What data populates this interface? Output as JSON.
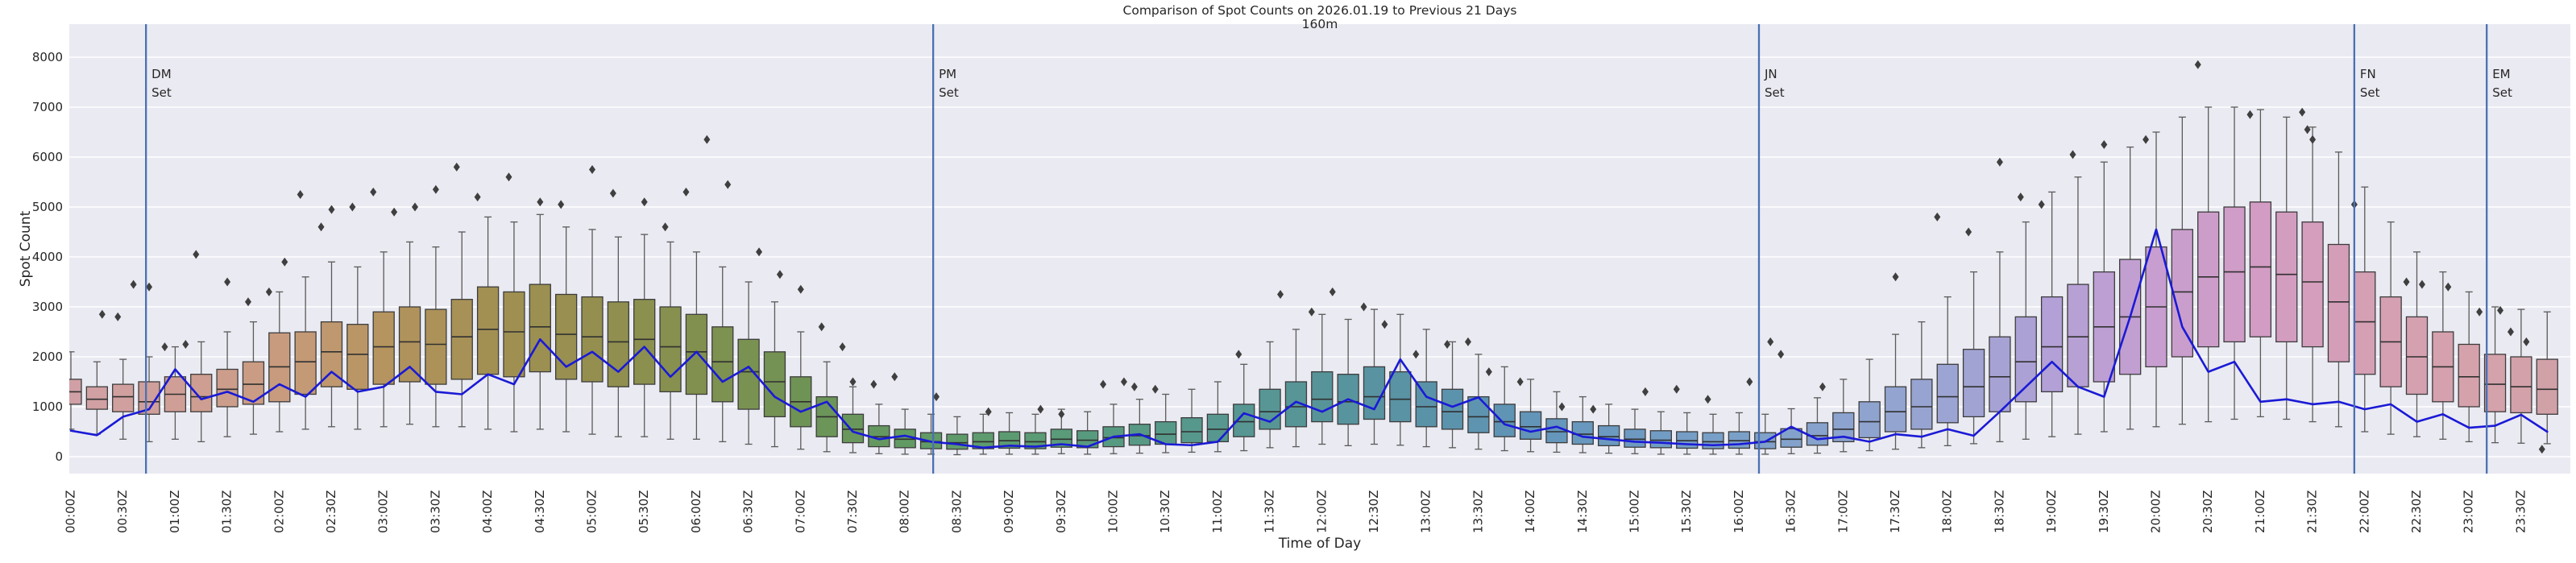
{
  "figure": {
    "title": "Comparison of Spot Counts on 2026.01.19 to Previous 21 Days",
    "subtitle": "160m",
    "xlabel": "Time of Day",
    "ylabel": "Spot Count"
  },
  "chart_data": {
    "type": "boxplot+line",
    "description": "Boxplots of spot counts from previous 21 days per time bin, with current-day spot counts as blue line and moon/sun event vertical lines",
    "interval_minutes": 15,
    "x_tick_labels": [
      "00:00Z",
      "00:30Z",
      "01:00Z",
      "01:30Z",
      "02:00Z",
      "02:30Z",
      "03:00Z",
      "03:30Z",
      "04:00Z",
      "04:30Z",
      "05:00Z",
      "05:30Z",
      "06:00Z",
      "06:30Z",
      "07:00Z",
      "07:30Z",
      "08:00Z",
      "08:30Z",
      "09:00Z",
      "09:30Z",
      "10:00Z",
      "10:30Z",
      "11:00Z",
      "11:30Z",
      "12:00Z",
      "12:30Z",
      "13:00Z",
      "13:30Z",
      "14:00Z",
      "14:30Z",
      "15:00Z",
      "15:30Z",
      "16:00Z",
      "16:30Z",
      "17:00Z",
      "17:30Z",
      "18:00Z",
      "18:30Z",
      "19:00Z",
      "19:30Z",
      "20:00Z",
      "20:30Z",
      "21:00Z",
      "21:30Z",
      "22:00Z",
      "22:30Z",
      "23:00Z",
      "23:30Z"
    ],
    "y_ticks": [
      0,
      1000,
      2000,
      3000,
      4000,
      5000,
      6000,
      7000,
      8000
    ],
    "y_tick_labels": [
      "0",
      "1000",
      "2000",
      "3000",
      "4000",
      "5000",
      "6000",
      "7000",
      "8000"
    ],
    "ylim": [
      -350,
      8650
    ],
    "grid": "horizontal-white-on-lavender",
    "legend": "none",
    "series": {
      "box_median": [
        1300,
        1150,
        1200,
        1100,
        1250,
        1200,
        1350,
        1450,
        1800,
        1900,
        2100,
        2050,
        2200,
        2300,
        2250,
        2400,
        2550,
        2500,
        2600,
        2450,
        2400,
        2300,
        2350,
        2200,
        2100,
        1900,
        1700,
        1500,
        1100,
        800,
        550,
        400,
        350,
        300,
        280,
        300,
        320,
        300,
        350,
        330,
        380,
        420,
        450,
        500,
        550,
        700,
        900,
        1000,
        1150,
        1100,
        1200,
        1150,
        1000,
        900,
        800,
        700,
        600,
        500,
        450,
        400,
        350,
        330,
        320,
        300,
        320,
        300,
        350,
        420,
        550,
        700,
        900,
        1000,
        1200,
        1400,
        1600,
        1900,
        2200,
        2400,
        2600,
        2800,
        3000,
        3300,
        3600,
        3700,
        3800,
        3650,
        3500,
        3100,
        2700,
        2300,
        2000,
        1800,
        1600,
        1450,
        1400,
        1350
      ],
      "box_q1": [
        1050,
        950,
        900,
        850,
        900,
        900,
        1000,
        1050,
        1100,
        1250,
        1400,
        1350,
        1450,
        1500,
        1450,
        1550,
        1650,
        1600,
        1700,
        1550,
        1500,
        1400,
        1450,
        1300,
        1250,
        1100,
        950,
        800,
        600,
        400,
        280,
        200,
        180,
        160,
        150,
        160,
        170,
        160,
        190,
        180,
        200,
        230,
        250,
        280,
        300,
        400,
        550,
        600,
        700,
        650,
        750,
        700,
        600,
        550,
        480,
        400,
        350,
        280,
        250,
        220,
        190,
        180,
        170,
        160,
        170,
        160,
        190,
        230,
        300,
        380,
        500,
        550,
        680,
        800,
        900,
        1100,
        1300,
        1400,
        1500,
        1650,
        1800,
        2000,
        2200,
        2300,
        2400,
        2300,
        2200,
        1900,
        1650,
        1400,
        1250,
        1100,
        1000,
        900,
        880,
        850
      ],
      "box_q3": [
        1550,
        1400,
        1450,
        1500,
        1600,
        1650,
        1750,
        1900,
        2480,
        2500,
        2700,
        2650,
        2900,
        3000,
        2950,
        3150,
        3400,
        3300,
        3450,
        3250,
        3200,
        3100,
        3150,
        3000,
        2850,
        2600,
        2350,
        2100,
        1600,
        1200,
        850,
        620,
        550,
        480,
        450,
        480,
        500,
        480,
        550,
        520,
        600,
        650,
        700,
        780,
        850,
        1050,
        1350,
        1500,
        1700,
        1650,
        1800,
        1700,
        1500,
        1350,
        1200,
        1050,
        900,
        760,
        700,
        620,
        550,
        520,
        500,
        480,
        500,
        480,
        560,
        680,
        880,
        1100,
        1400,
        1550,
        1850,
        2150,
        2400,
        2800,
        3200,
        3450,
        3700,
        3950,
        4200,
        4550,
        4900,
        5000,
        5100,
        4900,
        4700,
        4250,
        3700,
        3200,
        2800,
        2500,
        2250,
        2050,
        2000,
        1950
      ],
      "whisker_low": [
        550,
        450,
        350,
        300,
        350,
        300,
        400,
        450,
        500,
        550,
        600,
        550,
        600,
        650,
        600,
        600,
        550,
        500,
        550,
        500,
        450,
        400,
        400,
        350,
        350,
        300,
        250,
        200,
        150,
        100,
        80,
        60,
        50,
        50,
        40,
        50,
        50,
        50,
        60,
        50,
        60,
        70,
        80,
        90,
        100,
        120,
        180,
        200,
        250,
        220,
        250,
        230,
        200,
        180,
        150,
        120,
        100,
        90,
        80,
        70,
        60,
        50,
        50,
        50,
        50,
        50,
        60,
        70,
        100,
        120,
        150,
        180,
        220,
        260,
        300,
        350,
        400,
        450,
        500,
        550,
        600,
        650,
        700,
        750,
        800,
        750,
        700,
        600,
        500,
        450,
        400,
        350,
        300,
        280,
        270,
        260
      ],
      "whisker_high": [
        2100,
        1900,
        1950,
        2000,
        2200,
        2300,
        2500,
        2700,
        3300,
        3600,
        3900,
        3800,
        4100,
        4300,
        4200,
        4500,
        4800,
        4700,
        4850,
        4600,
        4550,
        4400,
        4450,
        4300,
        4100,
        3800,
        3500,
        3100,
        2500,
        1900,
        1400,
        1050,
        950,
        850,
        800,
        850,
        880,
        850,
        950,
        900,
        1050,
        1150,
        1250,
        1350,
        1500,
        1850,
        2300,
        2550,
        2850,
        2750,
        2950,
        2850,
        2550,
        2300,
        2050,
        1800,
        1550,
        1300,
        1200,
        1050,
        950,
        900,
        880,
        850,
        880,
        850,
        960,
        1180,
        1550,
        1950,
        2450,
        2700,
        3200,
        3700,
        4100,
        4700,
        5300,
        5600,
        5900,
        6200,
        6500,
        6800,
        7000,
        7000,
        6950,
        6800,
        6600,
        6100,
        5400,
        4700,
        4100,
        3700,
        3300,
        3000,
        2950,
        2900
      ],
      "current_day_line": [
        520,
        430,
        800,
        950,
        1750,
        1150,
        1300,
        1100,
        1450,
        1200,
        1700,
        1300,
        1400,
        1800,
        1300,
        1250,
        1650,
        1450,
        2350,
        1800,
        2100,
        1700,
        2200,
        1600,
        2100,
        1500,
        1800,
        1200,
        900,
        1100,
        500,
        350,
        420,
        300,
        250,
        180,
        220,
        200,
        250,
        200,
        400,
        450,
        250,
        230,
        300,
        870,
        700,
        1100,
        900,
        1150,
        950,
        1950,
        1200,
        1000,
        1190,
        650,
        500,
        600,
        400,
        350,
        300,
        280,
        250,
        230,
        250,
        300,
        600,
        350,
        400,
        300,
        450,
        400,
        550,
        420,
        900,
        1400,
        1900,
        1400,
        1200,
        2800,
        4550,
        2600,
        1700,
        1900,
        1100,
        1150,
        1050,
        1100,
        950,
        1050,
        700,
        850,
        580,
        620,
        840,
        500
      ]
    },
    "outliers": [
      [
        0.3,
        2850
      ],
      [
        0.45,
        2800
      ],
      [
        0.6,
        3450
      ],
      [
        0.75,
        3400
      ],
      [
        0.9,
        2200
      ],
      [
        1.1,
        2250
      ],
      [
        1.2,
        4050
      ],
      [
        1.5,
        3500
      ],
      [
        1.7,
        3100
      ],
      [
        1.9,
        3300
      ],
      [
        2.05,
        3900
      ],
      [
        2.2,
        5250
      ],
      [
        2.4,
        4600
      ],
      [
        2.5,
        4950
      ],
      [
        2.7,
        5000
      ],
      [
        2.9,
        5300
      ],
      [
        3.1,
        4900
      ],
      [
        3.3,
        5000
      ],
      [
        3.5,
        5350
      ],
      [
        3.7,
        5800
      ],
      [
        3.9,
        5200
      ],
      [
        4.2,
        5600
      ],
      [
        4.5,
        5100
      ],
      [
        4.7,
        5050
      ],
      [
        5.0,
        5750
      ],
      [
        5.2,
        5275
      ],
      [
        5.5,
        5100
      ],
      [
        5.7,
        4600
      ],
      [
        5.9,
        5300
      ],
      [
        6.1,
        6350
      ],
      [
        6.3,
        5450
      ],
      [
        6.6,
        4100
      ],
      [
        6.8,
        3650
      ],
      [
        7.0,
        3350
      ],
      [
        7.2,
        2600
      ],
      [
        7.4,
        2200
      ],
      [
        7.5,
        1500
      ],
      [
        7.7,
        1450
      ],
      [
        7.9,
        1600
      ],
      [
        8.3,
        1200
      ],
      [
        8.8,
        900
      ],
      [
        9.3,
        950
      ],
      [
        9.5,
        850
      ],
      [
        9.9,
        1450
      ],
      [
        10.1,
        1500
      ],
      [
        10.2,
        1400
      ],
      [
        10.4,
        1350
      ],
      [
        11.2,
        2050
      ],
      [
        11.6,
        3250
      ],
      [
        11.9,
        2900
      ],
      [
        12.1,
        3300
      ],
      [
        12.4,
        3000
      ],
      [
        12.6,
        2650
      ],
      [
        12.9,
        2050
      ],
      [
        13.2,
        2250
      ],
      [
        13.4,
        2300
      ],
      [
        13.6,
        1700
      ],
      [
        13.9,
        1500
      ],
      [
        14.3,
        1000
      ],
      [
        14.6,
        950
      ],
      [
        15.1,
        1300
      ],
      [
        15.4,
        1350
      ],
      [
        15.7,
        1150
      ],
      [
        16.1,
        1500
      ],
      [
        16.3,
        2300
      ],
      [
        16.4,
        2050
      ],
      [
        16.8,
        1400
      ],
      [
        17.5,
        3600
      ],
      [
        17.9,
        4800
      ],
      [
        18.2,
        4500
      ],
      [
        18.5,
        5900
      ],
      [
        18.7,
        5200
      ],
      [
        18.9,
        5050
      ],
      [
        19.2,
        6050
      ],
      [
        19.5,
        6250
      ],
      [
        19.9,
        6350
      ],
      [
        20.4,
        7850
      ],
      [
        20.9,
        6850
      ],
      [
        21.4,
        6900
      ],
      [
        21.45,
        6550
      ],
      [
        21.5,
        6350
      ],
      [
        21.9,
        5050
      ],
      [
        22.4,
        3500
      ],
      [
        22.55,
        3450
      ],
      [
        22.8,
        3400
      ],
      [
        23.1,
        2900
      ],
      [
        23.3,
        2930
      ],
      [
        23.4,
        2500
      ],
      [
        23.55,
        2300
      ],
      [
        23.7,
        150
      ]
    ],
    "event_lines": [
      {
        "label": "DM Set",
        "hour": 0.72
      },
      {
        "label": "PM Set",
        "hour": 8.27
      },
      {
        "label": "JN Set",
        "hour": 16.19
      },
      {
        "label": "FN Set",
        "hour": 21.9
      },
      {
        "label": "EM Set",
        "hour": 23.17
      }
    ],
    "palette_hourly": [
      "#d0a0a6",
      "#cf9f97",
      "#c89b7e",
      "#b5945f",
      "#a29053",
      "#948f4f",
      "#82904f",
      "#6f9355",
      "#629a63",
      "#5c9b71",
      "#579a82",
      "#57978f",
      "#579499",
      "#5a92a8",
      "#6295b8",
      "#6e9ac2",
      "#7ba0c8",
      "#8ba3ce",
      "#9ba4d2",
      "#b2a0d6",
      "#c79ecf",
      "#d29cc4",
      "#d59fb4",
      "#d5a2ac",
      "#d0a0a6"
    ],
    "colors": {
      "background": "#eaeaf2",
      "grid": "#ffffff",
      "line": "#1a1ad6",
      "event_line": "#4a70b2",
      "box_edge": "#3c3c3c",
      "median": "#303030",
      "whisker": "#5a5a5a",
      "outlier": "#3f3f3f",
      "text": "#262626"
    }
  }
}
